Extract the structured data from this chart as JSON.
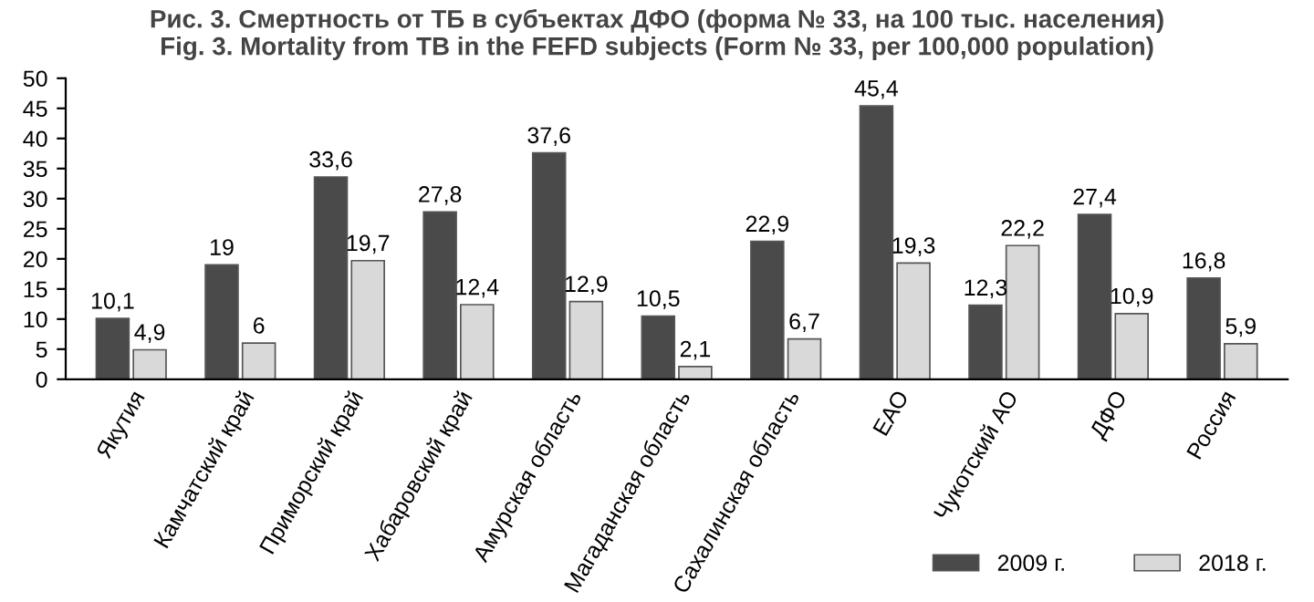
{
  "chart_data": {
    "type": "bar",
    "title": "Рис. 3. Смертность от ТБ в субъектах ДФО (форма № 33, на 100 тыс. населения)\nFig. 3. Mortality from TB in the FEFD subjects (Form № 33, per 100,000 population)",
    "categories": [
      "Якутия",
      "Камчатский край",
      "Приморский край",
      "Хабаровский край",
      "Амурская область",
      "Магаданская область",
      "Сахалинская область",
      "ЕАО",
      "Чукотский АО",
      "ДФО",
      "Россия"
    ],
    "series": [
      {
        "name": "2009 г.",
        "color": "#4a4a4a",
        "values": [
          10.1,
          19,
          33.6,
          27.8,
          37.6,
          10.5,
          22.9,
          45.4,
          12.3,
          27.4,
          16.8
        ],
        "value_labels": [
          "10,1",
          "19",
          "33,6",
          "27,8",
          "37,6",
          "10,5",
          "22,9",
          "45,4",
          "12,3",
          "27,4",
          "16,8"
        ]
      },
      {
        "name": "2018 г.",
        "color": "#d9d9d9",
        "values": [
          4.9,
          6,
          19.7,
          12.4,
          12.9,
          2.1,
          6.7,
          19.3,
          22.2,
          10.9,
          5.9
        ],
        "value_labels": [
          "4,9",
          "6",
          "19,7",
          "12,4",
          "12,9",
          "2,1",
          "6,7",
          "19,3",
          "22,2",
          "10,9",
          "5,9"
        ]
      }
    ],
    "ylim": [
      0,
      50
    ],
    "yticks": [
      0,
      5,
      10,
      15,
      20,
      25,
      30,
      35,
      40,
      45,
      50
    ],
    "grid": false,
    "legend": "bottom right"
  }
}
